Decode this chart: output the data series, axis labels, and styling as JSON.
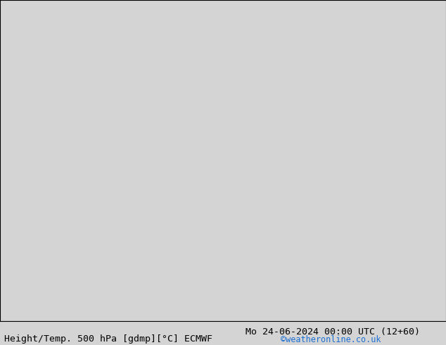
{
  "title_left": "Height/Temp. 500 hPa [gdmp][°C] ECMWF",
  "title_right": "Mo 24-06-2024 00:00 UTC (12+60)",
  "watermark": "©weatheronline.co.uk",
  "background_color": "#d4d4d4",
  "land_color": "#c8eac8",
  "sea_color": "#d4d4d4",
  "coast_color": "#888888",
  "black_contour_color": "#000000",
  "orange_contour_color": "#e08020",
  "font_size_title": 9.5,
  "font_size_watermark": 8.5,
  "extent": [
    -12.0,
    12.0,
    47.0,
    63.5
  ],
  "figsize": [
    6.34,
    4.9
  ],
  "dpi": 100
}
